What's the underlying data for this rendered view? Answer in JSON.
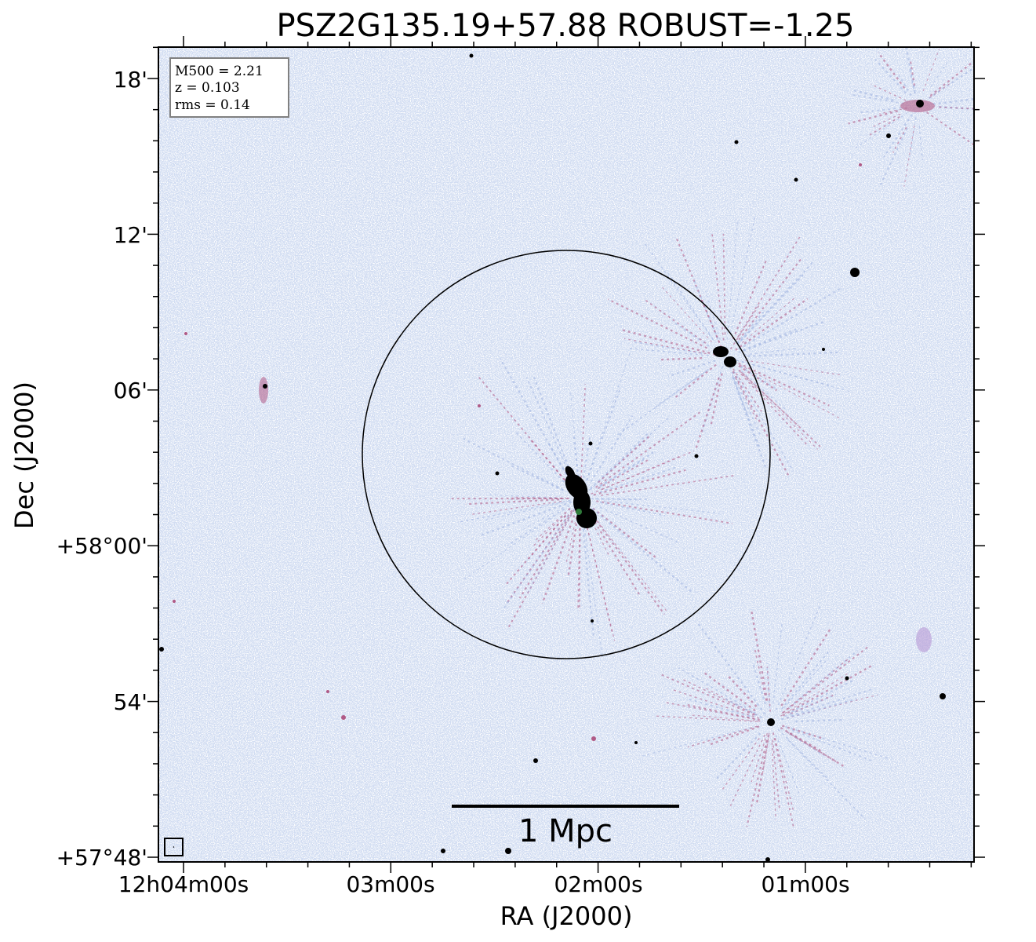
{
  "title": "PSZ2G135.19+57.88 ROBUST=-1.25",
  "info_box": {
    "line1": "M500 = 2.21",
    "line2": "z = 0.103",
    "line3": "rms = 0.14"
  },
  "axes": {
    "xlabel": "RA (J2000)",
    "ylabel": "Dec (J2000)",
    "x_ticks": [
      "12h04m00s",
      "03m00s",
      "02m00s",
      "01m00s"
    ],
    "y_ticks": [
      "18'",
      "12'",
      "06'",
      "+58°00'",
      "54'",
      "+57°48'"
    ]
  },
  "scale_bar": {
    "label": "1 Mpc"
  },
  "colors": {
    "noise_blue": "#9fb3e0",
    "halo_pink": "#b05a86",
    "source": "#000000",
    "frame": "#000000"
  }
}
